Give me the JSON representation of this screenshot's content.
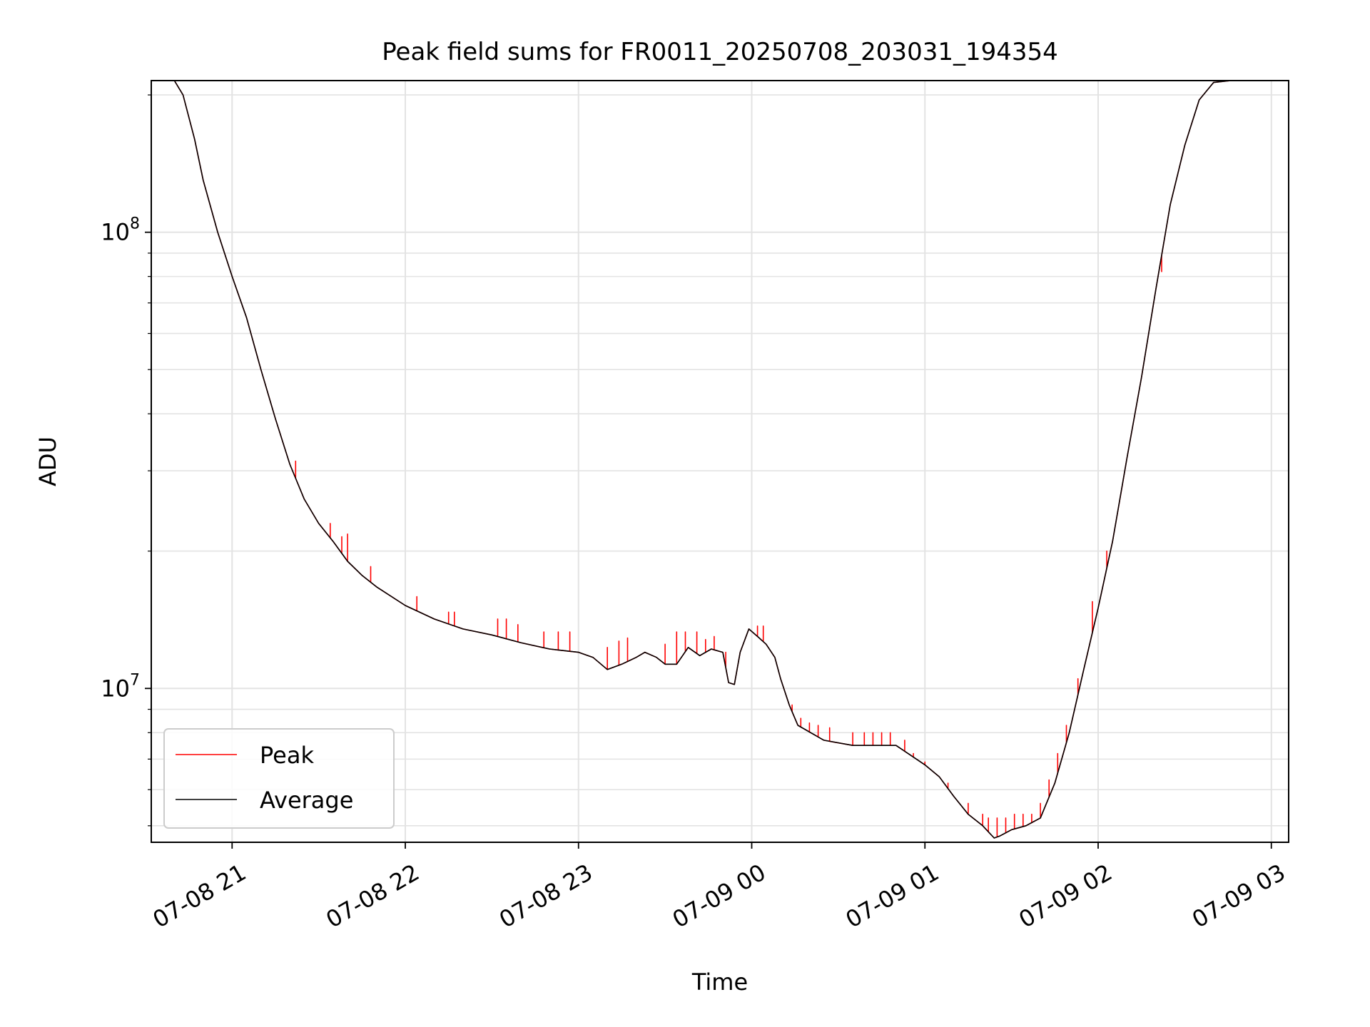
{
  "chart_data": {
    "type": "line",
    "title": "Peak field sums for FR0011_20250708_203031_194354",
    "xlabel": "Time",
    "ylabel": "ADU",
    "yscale": "log",
    "xlim": [
      "2025-07-08 20:32",
      "2025-07-09 03:06"
    ],
    "ylim": [
      4600000,
      215000000
    ],
    "x_ticks": [
      {
        "value": "2025-07-08 21:00",
        "label": "07-08 21"
      },
      {
        "value": "2025-07-08 22:00",
        "label": "07-08 22"
      },
      {
        "value": "2025-07-08 23:00",
        "label": "07-08 23"
      },
      {
        "value": "2025-07-09 00:00",
        "label": "07-09 00"
      },
      {
        "value": "2025-07-09 01:00",
        "label": "07-09 01"
      },
      {
        "value": "2025-07-09 02:00",
        "label": "07-09 02"
      },
      {
        "value": "2025-07-09 03:00",
        "label": "07-09 03"
      }
    ],
    "y_ticks": [
      {
        "value": 10000000,
        "base": "10",
        "exp": "7"
      },
      {
        "value": 100000000,
        "base": "10",
        "exp": "8"
      }
    ],
    "grid": true,
    "legend_position": "lower-left",
    "series": [
      {
        "name": "Average",
        "color": "#000000",
        "points": [
          [
            "2025-07-08 20:32",
            215000000
          ],
          [
            "2025-07-08 20:40",
            215000000
          ],
          [
            "2025-07-08 20:43",
            200000000
          ],
          [
            "2025-07-08 20:47",
            160000000
          ],
          [
            "2025-07-08 20:50",
            130000000
          ],
          [
            "2025-07-08 20:55",
            100000000
          ],
          [
            "2025-07-08 21:00",
            80000000
          ],
          [
            "2025-07-08 21:05",
            65000000
          ],
          [
            "2025-07-08 21:10",
            50000000
          ],
          [
            "2025-07-08 21:15",
            39000000
          ],
          [
            "2025-07-08 21:20",
            31000000
          ],
          [
            "2025-07-08 21:25",
            26000000
          ],
          [
            "2025-07-08 21:30",
            23000000
          ],
          [
            "2025-07-08 21:35",
            21000000
          ],
          [
            "2025-07-08 21:40",
            19000000
          ],
          [
            "2025-07-08 21:45",
            17700000
          ],
          [
            "2025-07-08 21:50",
            16700000
          ],
          [
            "2025-07-08 22:00",
            15200000
          ],
          [
            "2025-07-08 22:10",
            14200000
          ],
          [
            "2025-07-08 22:20",
            13500000
          ],
          [
            "2025-07-08 22:30",
            13100000
          ],
          [
            "2025-07-08 22:40",
            12600000
          ],
          [
            "2025-07-08 22:50",
            12200000
          ],
          [
            "2025-07-08 22:55",
            12100000
          ],
          [
            "2025-07-08 23:00",
            12000000
          ],
          [
            "2025-07-08 23:05",
            11700000
          ],
          [
            "2025-07-08 23:10",
            11000000
          ],
          [
            "2025-07-08 23:15",
            11300000
          ],
          [
            "2025-07-08 23:20",
            11700000
          ],
          [
            "2025-07-08 23:23",
            12000000
          ],
          [
            "2025-07-08 23:27",
            11700000
          ],
          [
            "2025-07-08 23:30",
            11300000
          ],
          [
            "2025-07-08 23:34",
            11300000
          ],
          [
            "2025-07-08 23:38",
            12300000
          ],
          [
            "2025-07-08 23:42",
            11800000
          ],
          [
            "2025-07-08 23:46",
            12200000
          ],
          [
            "2025-07-08 23:50",
            12000000
          ],
          [
            "2025-07-08 23:52",
            10300000
          ],
          [
            "2025-07-08 23:54",
            10200000
          ],
          [
            "2025-07-08 23:56",
            12000000
          ],
          [
            "2025-07-08 23:59",
            13500000
          ],
          [
            "2025-07-09 00:02",
            13000000
          ],
          [
            "2025-07-09 00:05",
            12500000
          ],
          [
            "2025-07-09 00:08",
            11700000
          ],
          [
            "2025-07-09 00:10",
            10500000
          ],
          [
            "2025-07-09 00:13",
            9200000
          ],
          [
            "2025-07-09 00:16",
            8300000
          ],
          [
            "2025-07-09 00:25",
            7700000
          ],
          [
            "2025-07-09 00:35",
            7500000
          ],
          [
            "2025-07-09 00:50",
            7500000
          ],
          [
            "2025-07-09 01:00",
            6800000
          ],
          [
            "2025-07-09 01:05",
            6400000
          ],
          [
            "2025-07-09 01:10",
            5800000
          ],
          [
            "2025-07-09 01:15",
            5300000
          ],
          [
            "2025-07-09 01:20",
            5000000
          ],
          [
            "2025-07-09 01:24",
            4700000
          ],
          [
            "2025-07-09 01:26",
            4750000
          ],
          [
            "2025-07-09 01:30",
            4900000
          ],
          [
            "2025-07-09 01:35",
            5000000
          ],
          [
            "2025-07-09 01:40",
            5200000
          ],
          [
            "2025-07-09 01:45",
            6200000
          ],
          [
            "2025-07-09 01:50",
            8000000
          ],
          [
            "2025-07-09 01:55",
            11000000
          ],
          [
            "2025-07-09 02:00",
            15000000
          ],
          [
            "2025-07-09 02:05",
            21000000
          ],
          [
            "2025-07-09 02:10",
            32000000
          ],
          [
            "2025-07-09 02:15",
            48000000
          ],
          [
            "2025-07-09 02:20",
            75000000
          ],
          [
            "2025-07-09 02:25",
            115000000
          ],
          [
            "2025-07-09 02:30",
            155000000
          ],
          [
            "2025-07-09 02:35",
            195000000
          ],
          [
            "2025-07-09 02:40",
            213000000
          ],
          [
            "2025-07-09 02:46",
            215000000
          ]
        ]
      },
      {
        "name": "Peak",
        "color": "#ff0000",
        "spikes": [
          [
            "2025-07-08 21:22",
            31500000
          ],
          [
            "2025-07-08 21:34",
            23000000
          ],
          [
            "2025-07-08 21:38",
            21500000
          ],
          [
            "2025-07-08 21:40",
            21800000
          ],
          [
            "2025-07-08 21:48",
            18500000
          ],
          [
            "2025-07-08 22:04",
            15900000
          ],
          [
            "2025-07-08 22:15",
            14700000
          ],
          [
            "2025-07-08 22:17",
            14700000
          ],
          [
            "2025-07-08 22:32",
            14200000
          ],
          [
            "2025-07-08 22:35",
            14200000
          ],
          [
            "2025-07-08 22:39",
            13800000
          ],
          [
            "2025-07-08 22:48",
            13300000
          ],
          [
            "2025-07-08 22:53",
            13300000
          ],
          [
            "2025-07-08 22:57",
            13300000
          ],
          [
            "2025-07-08 23:10",
            12300000
          ],
          [
            "2025-07-08 23:14",
            12700000
          ],
          [
            "2025-07-08 23:17",
            12900000
          ],
          [
            "2025-07-08 23:30",
            12500000
          ],
          [
            "2025-07-08 23:34",
            13300000
          ],
          [
            "2025-07-08 23:37",
            13300000
          ],
          [
            "2025-07-08 23:41",
            13300000
          ],
          [
            "2025-07-08 23:44",
            12800000
          ],
          [
            "2025-07-08 23:47",
            13000000
          ],
          [
            "2025-07-08 23:51",
            12000000
          ],
          [
            "2025-07-09 00:02",
            13700000
          ],
          [
            "2025-07-09 00:04",
            13700000
          ],
          [
            "2025-07-09 00:14",
            9200000
          ],
          [
            "2025-07-09 00:17",
            8600000
          ],
          [
            "2025-07-09 00:20",
            8400000
          ],
          [
            "2025-07-09 00:23",
            8300000
          ],
          [
            "2025-07-09 00:27",
            8200000
          ],
          [
            "2025-07-09 00:35",
            8000000
          ],
          [
            "2025-07-09 00:39",
            8000000
          ],
          [
            "2025-07-09 00:42",
            8000000
          ],
          [
            "2025-07-09 00:45",
            8000000
          ],
          [
            "2025-07-09 00:48",
            8000000
          ],
          [
            "2025-07-09 00:53",
            7700000
          ],
          [
            "2025-07-09 00:56",
            7200000
          ],
          [
            "2025-07-09 01:00",
            6900000
          ],
          [
            "2025-07-09 01:08",
            6200000
          ],
          [
            "2025-07-09 01:13",
            5500000
          ],
          [
            "2025-07-09 01:15",
            5600000
          ],
          [
            "2025-07-09 01:20",
            5300000
          ],
          [
            "2025-07-09 01:22",
            5200000
          ],
          [
            "2025-07-09 01:25",
            5200000
          ],
          [
            "2025-07-09 01:28",
            5200000
          ],
          [
            "2025-07-09 01:31",
            5300000
          ],
          [
            "2025-07-09 01:34",
            5300000
          ],
          [
            "2025-07-09 01:37",
            5300000
          ],
          [
            "2025-07-09 01:40",
            5600000
          ],
          [
            "2025-07-09 01:43",
            6300000
          ],
          [
            "2025-07-09 01:46",
            7200000
          ],
          [
            "2025-07-09 01:49",
            8300000
          ],
          [
            "2025-07-09 01:53",
            10500000
          ],
          [
            "2025-07-09 01:58",
            15500000
          ],
          [
            "2025-07-09 02:03",
            20000000
          ],
          [
            "2025-07-09 02:08",
            27000000
          ],
          [
            "2025-07-09 02:13",
            41000000
          ],
          [
            "2025-07-09 02:22",
            82000000
          ]
        ]
      }
    ]
  }
}
